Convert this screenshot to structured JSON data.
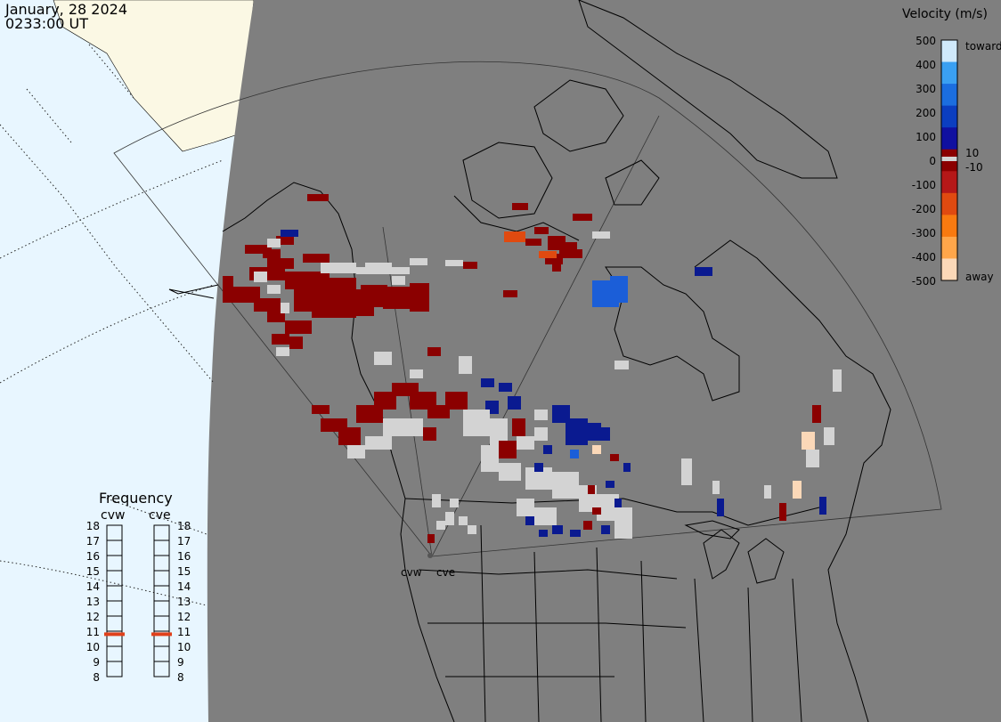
{
  "header": {
    "date": "January, 28 2024",
    "time": "0233:00 UT"
  },
  "velocity_scale": {
    "title": "Velocity (m/s)",
    "ticks": [
      "500",
      "400",
      "300",
      "200",
      "100",
      "0",
      "-100",
      "-200",
      "-300",
      "-400",
      "-500"
    ],
    "inner_ticks": [
      "10",
      "-10"
    ],
    "label_toward": "toward",
    "label_away": "away",
    "colors": [
      "#fbd8b8",
      "#ffa64a",
      "#f97a10",
      "#e04a10",
      "#b51818",
      "#8b0000",
      "#1010a0",
      "#0b3ec0",
      "#1b6ee0",
      "#3aa0f2",
      "#cfe9fb"
    ]
  },
  "frequency": {
    "title": "Frequency",
    "radars": [
      {
        "name": "cvw",
        "value": 10.8
      },
      {
        "name": "cve",
        "value": 10.8
      }
    ],
    "scale": [
      "18",
      "17",
      "16",
      "15",
      "14",
      "13",
      "12",
      "11",
      "10",
      "9",
      "8"
    ],
    "marker_color": "#e0401a"
  },
  "map": {
    "station_labels": [
      "cvw",
      "cve"
    ],
    "colors": {
      "land": "#7f7f7f",
      "ocean": "#e8f6ff",
      "night_land": "#fbf8e4",
      "ground_scatter": "#d3d3d3",
      "coast": "#000000"
    }
  }
}
